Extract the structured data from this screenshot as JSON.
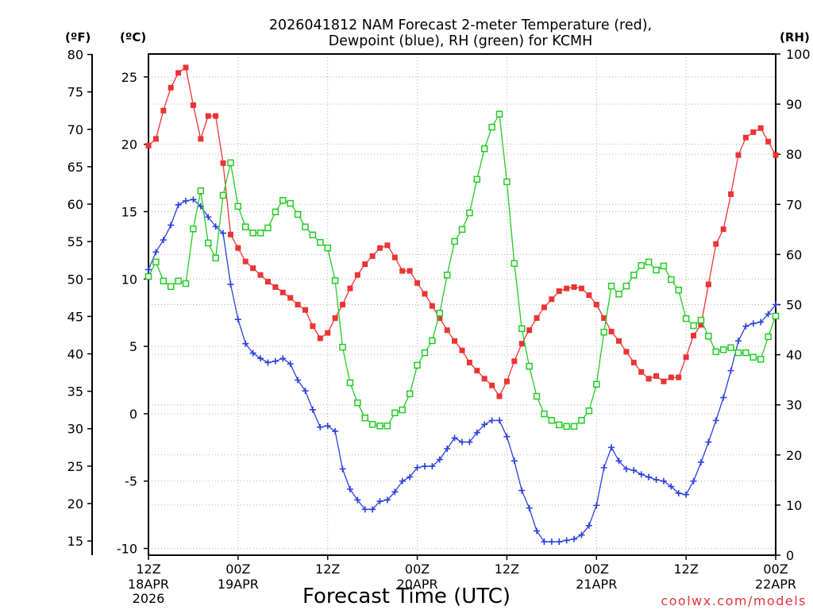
{
  "credit": "coolwx.com/models",
  "colors": {
    "temperature": "#ec3434",
    "dewpoint": "#2b3fe0",
    "rh": "#22cc22",
    "grid": "#b0b0b0",
    "credit": "#e8333a",
    "axis": "#000000"
  },
  "chart_data": {
    "type": "line",
    "title_lines": [
      "2026041812 NAM Forecast 2-meter Temperature (red),",
      "Dewpoint (blue), RH (green) for KCMH"
    ],
    "xlabel": "Forecast Time (UTC)",
    "xlim": [
      0,
      84
    ],
    "grid": true,
    "x_ticks": [
      {
        "hour": 0,
        "time": "12Z",
        "date": "18APR",
        "year": "2026"
      },
      {
        "hour": 12,
        "time": "00Z",
        "date": "19APR"
      },
      {
        "hour": 24,
        "time": "12Z"
      },
      {
        "hour": 36,
        "time": "00Z",
        "date": "20APR"
      },
      {
        "hour": 48,
        "time": "12Z"
      },
      {
        "hour": 60,
        "time": "00Z",
        "date": "21APR"
      },
      {
        "hour": 72,
        "time": "12Z"
      },
      {
        "hour": 84,
        "time": "00Z",
        "date": "22APR"
      }
    ],
    "axes": {
      "fahrenheit": {
        "label": "(ºF)",
        "ticks": [
          15,
          20,
          25,
          30,
          35,
          40,
          45,
          50,
          55,
          60,
          65,
          70,
          75,
          80
        ]
      },
      "celsius": {
        "label": "(ºC)",
        "range": [
          -10.5,
          26.7
        ],
        "ticks": [
          -10,
          -5,
          0,
          5,
          10,
          15,
          20,
          25
        ]
      },
      "rh": {
        "label": "(RH)",
        "range": [
          0,
          100
        ],
        "ticks": [
          0,
          10,
          20,
          30,
          40,
          50,
          60,
          70,
          80,
          90,
          100
        ]
      }
    },
    "x": [
      0,
      1,
      2,
      3,
      4,
      5,
      6,
      7,
      8,
      9,
      10,
      11,
      12,
      13,
      14,
      15,
      16,
      17,
      18,
      19,
      20,
      21,
      22,
      23,
      24,
      25,
      26,
      27,
      28,
      29,
      30,
      31,
      32,
      33,
      34,
      35,
      36,
      37,
      38,
      39,
      40,
      41,
      42,
      43,
      44,
      45,
      46,
      47,
      48,
      49,
      50,
      51,
      52,
      53,
      54,
      55,
      56,
      57,
      58,
      59,
      60,
      61,
      62,
      63,
      64,
      65,
      66,
      67,
      68,
      69,
      70,
      71,
      72,
      73,
      74,
      75,
      76,
      77,
      78,
      79,
      80,
      81,
      82,
      83,
      84
    ],
    "series": {
      "temperature": {
        "values": [
          19.9,
          20.4,
          22.5,
          24.2,
          25.3,
          25.7,
          22.9,
          20.4,
          22.1,
          22.1,
          18.6,
          13.3,
          12.3,
          11.3,
          10.8,
          10.3,
          9.8,
          9.4,
          9.0,
          8.6,
          8.1,
          7.7,
          6.5,
          5.6,
          6.0,
          7.1,
          8.1,
          9.3,
          10.3,
          11.1,
          11.7,
          12.3,
          12.5,
          11.6,
          10.6,
          10.6,
          9.7,
          8.9,
          8.0,
          7.1,
          6.2,
          5.4,
          4.7,
          3.8,
          3.2,
          2.6,
          2.1,
          1.3,
          2.4,
          3.9,
          5.2,
          6.2,
          7.1,
          7.9,
          8.5,
          9.1,
          9.3,
          9.4,
          9.3,
          8.8,
          8.1,
          7.1,
          6.1,
          5.4,
          4.6,
          3.8,
          3.1,
          2.6,
          2.8,
          2.4,
          2.7,
          2.7,
          4.2,
          5.8,
          6.6,
          9.6,
          12.6,
          13.7,
          16.3,
          19.2,
          20.5,
          20.9,
          21.2,
          20.2,
          19.2
        ]
      },
      "dewpoint": {
        "values": [
          10.7,
          12.0,
          12.9,
          14.0,
          15.5,
          15.8,
          15.9,
          15.4,
          14.6,
          13.9,
          13.4,
          9.6,
          7.0,
          5.2,
          4.5,
          4.1,
          3.8,
          3.9,
          4.1,
          3.7,
          2.5,
          1.7,
          0.3,
          -1.0,
          -0.9,
          -1.3,
          -4.1,
          -5.6,
          -6.4,
          -7.1,
          -7.1,
          -6.5,
          -6.4,
          -5.8,
          -5.0,
          -4.7,
          -4.0,
          -3.9,
          -3.9,
          -3.4,
          -2.6,
          -1.8,
          -2.1,
          -2.1,
          -1.4,
          -0.8,
          -0.5,
          -0.5,
          -1.7,
          -3.5,
          -5.7,
          -7.0,
          -8.7,
          -9.5,
          -9.5,
          -9.5,
          -9.4,
          -9.3,
          -9.0,
          -8.3,
          -6.8,
          -4.0,
          -2.5,
          -3.5,
          -4.1,
          -4.2,
          -4.5,
          -4.7,
          -4.9,
          -5.0,
          -5.4,
          -5.9,
          -6.0,
          -5.0,
          -3.6,
          -2.1,
          -0.5,
          1.2,
          3.2,
          5.4,
          6.5,
          6.7,
          6.8,
          7.4,
          8.1
        ]
      },
      "rh": {
        "values": [
          55.6,
          58.5,
          54.7,
          53.6,
          54.7,
          54.2,
          65.1,
          72.7,
          62.3,
          59.3,
          71.8,
          78.3,
          69.6,
          65.5,
          64.3,
          64.3,
          65.3,
          68.5,
          70.8,
          70.2,
          68.0,
          65.5,
          63.9,
          62.4,
          61.3,
          54.8,
          41.5,
          34.4,
          30.4,
          27.4,
          26.1,
          25.8,
          25.8,
          28.4,
          29.0,
          32.2,
          37.9,
          40.4,
          42.8,
          48.3,
          55.9,
          62.6,
          65.0,
          68.3,
          75.0,
          81.1,
          85.4,
          88.0,
          74.5,
          58.2,
          45.2,
          37.7,
          31.7,
          28.2,
          26.9,
          26.0,
          25.7,
          25.7,
          26.9,
          28.8,
          34.1,
          44.5,
          53.7,
          52.1,
          53.7,
          55.9,
          57.8,
          58.5,
          56.9,
          57.7,
          55.0,
          52.9,
          47.2,
          45.8,
          46.9,
          43.7,
          40.6,
          41.0,
          41.4,
          40.4,
          40.4,
          39.5,
          39.1,
          43.6,
          47.7
        ]
      }
    }
  }
}
